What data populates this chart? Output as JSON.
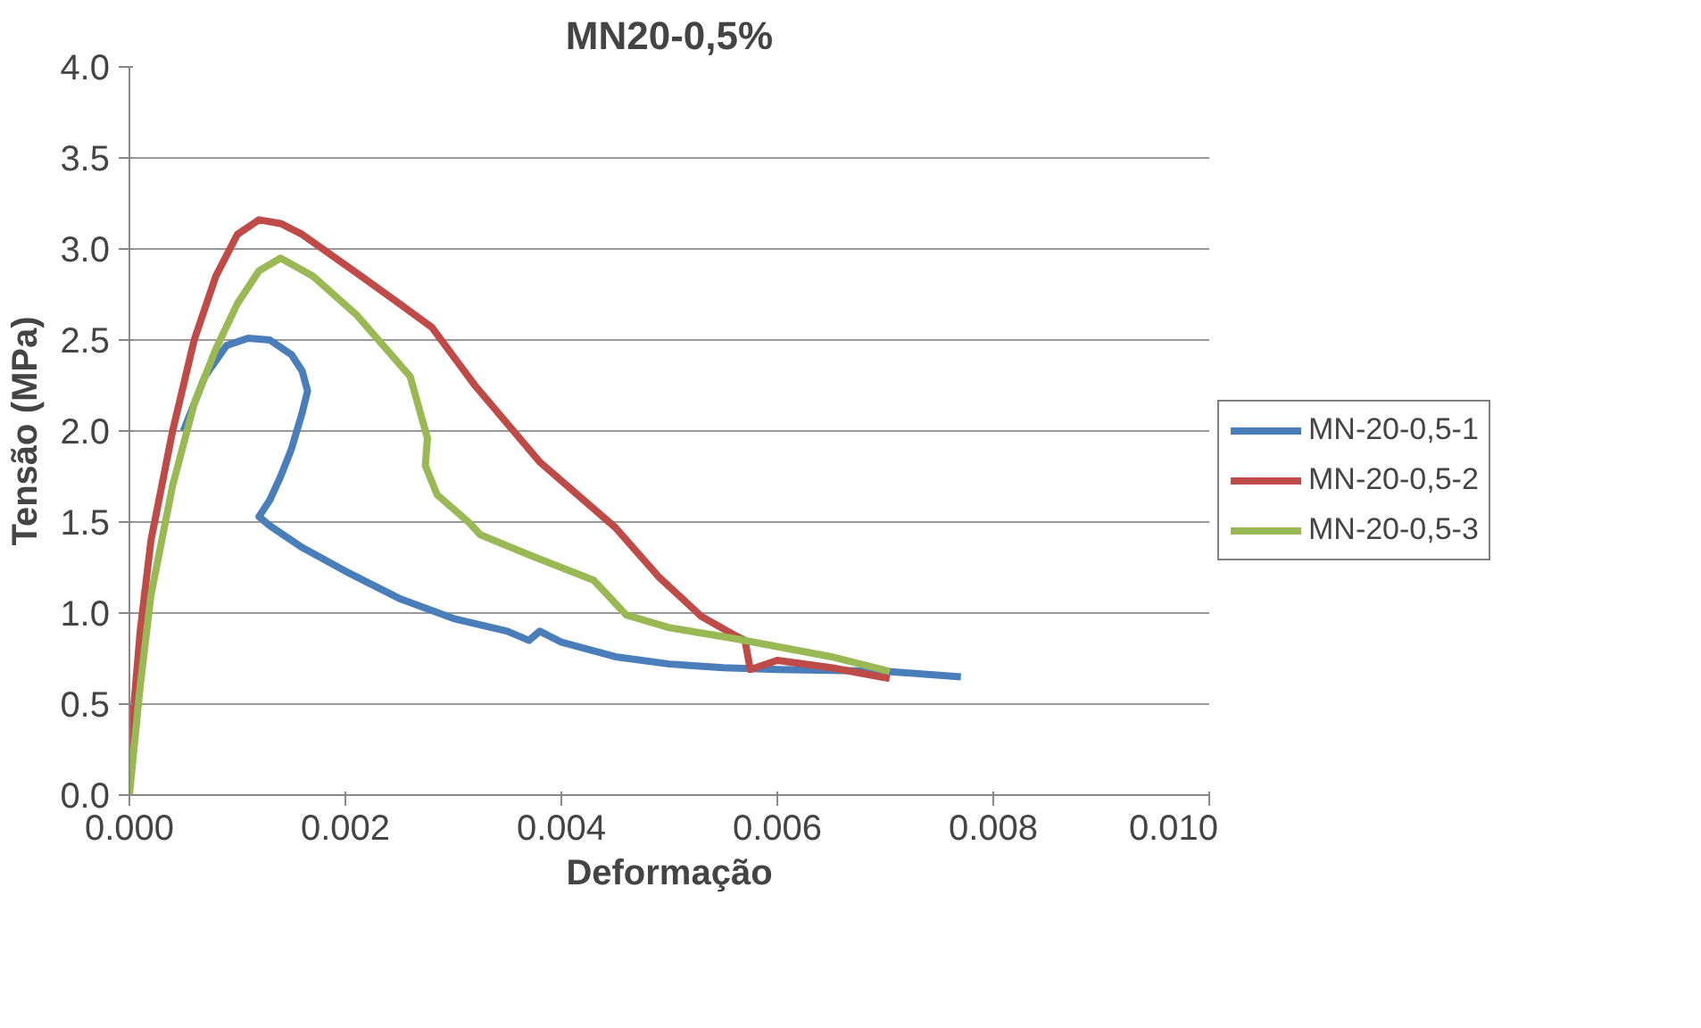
{
  "chart_data": {
    "type": "line",
    "title": "MN20-0,5%",
    "xlabel": "Deformação",
    "ylabel": "Tensão (MPa)",
    "xlim": [
      0,
      0.01
    ],
    "xticks": [
      {
        "value": 0,
        "label": "0.000"
      },
      {
        "value": 0.002,
        "label": "0.002"
      },
      {
        "value": 0.004,
        "label": "0.004"
      },
      {
        "value": 0.006,
        "label": "0.006"
      },
      {
        "value": 0.008,
        "label": "0.008"
      },
      {
        "value": 0.01,
        "label": "0.010"
      }
    ],
    "ylim": [
      0,
      4
    ],
    "yticks": [
      {
        "value": 0,
        "label": "0.0"
      },
      {
        "value": 0.5,
        "label": "0.5"
      },
      {
        "value": 1,
        "label": "1.0"
      },
      {
        "value": 1.5,
        "label": "1.5"
      },
      {
        "value": 2,
        "label": "2.0"
      },
      {
        "value": 2.5,
        "label": "2.5"
      },
      {
        "value": 3,
        "label": "3.0"
      },
      {
        "value": 3.5,
        "label": "3.5"
      },
      {
        "value": 4,
        "label": "4.0"
      }
    ],
    "grid": "y",
    "legend": "right",
    "marker": "none",
    "line_style": "solid",
    "series": [
      {
        "name": "MN-20-0,5-1",
        "color": "#4a7ebb",
        "x": [
          0.0005,
          0.0007,
          0.0009,
          0.0011,
          0.0013,
          0.0015,
          0.0016,
          0.00165,
          0.0016,
          0.0015,
          0.0014,
          0.0013,
          0.0012,
          0.0013,
          0.0016,
          0.002,
          0.0025,
          0.003,
          0.0035,
          0.0037,
          0.0038,
          0.004,
          0.0045,
          0.005,
          0.0055,
          0.006,
          0.007,
          0.0077
        ],
        "values": [
          2.0,
          2.3,
          2.47,
          2.51,
          2.5,
          2.42,
          2.33,
          2.22,
          2.1,
          1.9,
          1.75,
          1.62,
          1.53,
          1.48,
          1.36,
          1.23,
          1.08,
          0.97,
          0.9,
          0.85,
          0.9,
          0.84,
          0.76,
          0.72,
          0.7,
          0.69,
          0.68,
          0.65
        ]
      },
      {
        "name": "MN-20-0,5-2",
        "color": "#be4b48",
        "x": [
          0,
          0.0001,
          0.0002,
          0.0004,
          0.0006,
          0.0008,
          0.001,
          0.0012,
          0.0014,
          0.0016,
          0.0021,
          0.0025,
          0.0028,
          0.003,
          0.0032,
          0.0038,
          0.0045,
          0.0049,
          0.0053,
          0.0056,
          0.0057,
          0.00575,
          0.006,
          0.0065,
          0.00704
        ],
        "values": [
          0.2,
          0.9,
          1.4,
          2.0,
          2.5,
          2.85,
          3.08,
          3.16,
          3.14,
          3.08,
          2.87,
          2.7,
          2.57,
          2.41,
          2.25,
          1.83,
          1.47,
          1.2,
          0.98,
          0.88,
          0.85,
          0.69,
          0.74,
          0.7,
          0.64
        ]
      },
      {
        "name": "MN-20-0,5-3",
        "color": "#98b954",
        "x": [
          0,
          0.0001,
          0.0002,
          0.0004,
          0.0006,
          0.0008,
          0.001,
          0.0012,
          0.0014,
          0.0017,
          0.0021,
          0.0026,
          0.00276,
          0.00274,
          0.00285,
          0.00314,
          0.00325,
          0.0037,
          0.0043,
          0.0046,
          0.005,
          0.0056,
          0.0065,
          0.00704
        ],
        "values": [
          0,
          0.6,
          1.1,
          1.7,
          2.15,
          2.45,
          2.7,
          2.88,
          2.95,
          2.85,
          2.64,
          2.3,
          1.96,
          1.81,
          1.65,
          1.5,
          1.43,
          1.32,
          1.18,
          0.99,
          0.92,
          0.86,
          0.76,
          0.68
        ]
      }
    ]
  }
}
